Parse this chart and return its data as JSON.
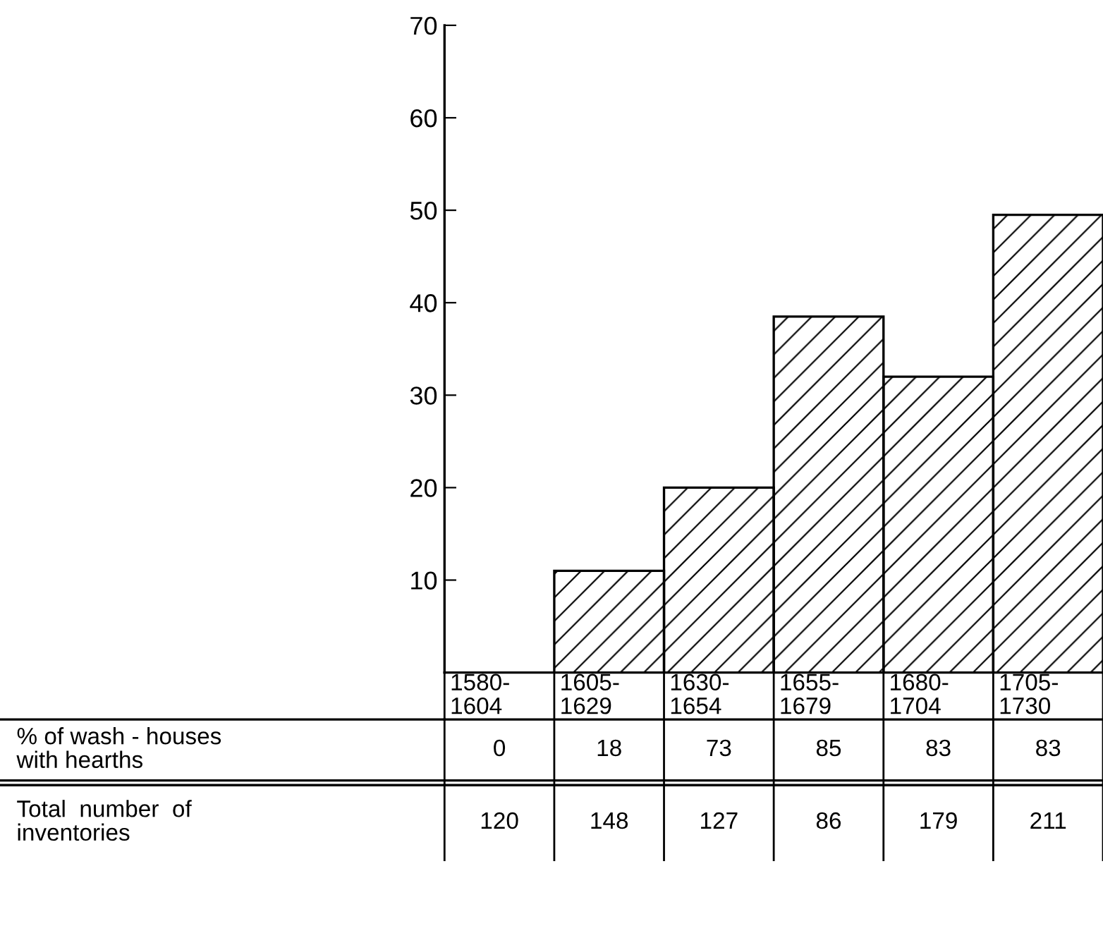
{
  "chart_data": {
    "type": "bar",
    "categories": [
      "1580-\n1604",
      "1605-\n1629",
      "1630-\n1654",
      "1655-\n1679",
      "1680-\n1704",
      "1705-\n1730"
    ],
    "values": [
      0,
      11,
      20,
      38.5,
      32,
      49.5
    ],
    "color": "#000000",
    "ylim": [
      0,
      70
    ],
    "yticks": [
      {
        "value": 0,
        "label": null
      },
      10,
      20,
      30,
      40,
      50,
      60,
      70
    ],
    "grid": false,
    "annotations": [
      "% of wash - houses\nwith hearths",
      "0",
      "18",
      "73",
      "85",
      "83",
      "83",
      "Total  number  of\ninventories",
      "120",
      "148",
      "127",
      "86",
      "179",
      "211"
    ]
  }
}
